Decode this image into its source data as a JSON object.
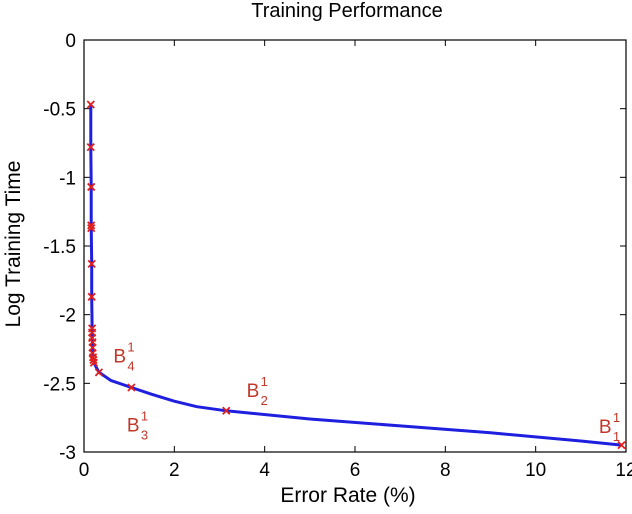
{
  "chart_data": {
    "type": "line",
    "title": "Training Performance",
    "xlabel": "Error Rate (%)",
    "ylabel": "Log Training Time",
    "xlim": [
      0,
      12
    ],
    "ylim": [
      -3,
      0
    ],
    "xticks": [
      0,
      2,
      4,
      6,
      8,
      10,
      12
    ],
    "yticks": [
      0,
      -0.5,
      -1,
      -1.5,
      -2,
      -2.5,
      -3
    ],
    "x_tick_labels": [
      "0",
      "2",
      "4",
      "6",
      "8",
      "10",
      "12"
    ],
    "y_tick_labels": [
      "0",
      "-0.5",
      "-1",
      "-1.5",
      "-2",
      "-2.5",
      "-3"
    ],
    "grid": false,
    "line_color": "#1f1fe0",
    "marker_color": "#e01f1f",
    "annotation_color": "#c0392b",
    "series": [
      {
        "curve": [
          [
            0.15,
            -0.47
          ],
          [
            0.15,
            -0.78
          ],
          [
            0.16,
            -1.07
          ],
          [
            0.16,
            -1.35
          ],
          [
            0.17,
            -1.63
          ],
          [
            0.17,
            -1.87
          ],
          [
            0.18,
            -2.1
          ],
          [
            0.18,
            -2.17
          ],
          [
            0.19,
            -2.22
          ],
          [
            0.19,
            -2.28
          ],
          [
            0.2,
            -2.32
          ],
          [
            0.22,
            -2.35
          ],
          [
            0.33,
            -2.42
          ],
          [
            0.6,
            -2.48
          ],
          [
            1.05,
            -2.53
          ],
          [
            1.5,
            -2.58
          ],
          [
            2.0,
            -2.63
          ],
          [
            2.5,
            -2.67
          ],
          [
            3.15,
            -2.7
          ],
          [
            5.0,
            -2.76
          ],
          [
            7.0,
            -2.81
          ],
          [
            9.0,
            -2.86
          ],
          [
            11.0,
            -2.92
          ],
          [
            11.9,
            -2.95
          ]
        ],
        "markers": [
          [
            0.15,
            -0.47
          ],
          [
            0.15,
            -0.78
          ],
          [
            0.16,
            -1.07
          ],
          [
            0.16,
            -1.35
          ],
          [
            0.16,
            -1.37
          ],
          [
            0.17,
            -1.63
          ],
          [
            0.17,
            -1.87
          ],
          [
            0.18,
            -2.1
          ],
          [
            0.18,
            -2.13
          ],
          [
            0.18,
            -2.17
          ],
          [
            0.19,
            -2.2
          ],
          [
            0.19,
            -2.24
          ],
          [
            0.19,
            -2.28
          ],
          [
            0.2,
            -2.31
          ],
          [
            0.21,
            -2.33
          ],
          [
            0.22,
            -2.35
          ],
          [
            0.33,
            -2.42
          ],
          [
            1.05,
            -2.53
          ],
          [
            3.15,
            -2.7
          ],
          [
            11.9,
            -2.95
          ]
        ]
      }
    ],
    "annotations": [
      {
        "text": "B",
        "sub": "4",
        "sup": "1",
        "x": 0.65,
        "y": -2.35
      },
      {
        "text": "B",
        "sub": "2",
        "sup": "1",
        "x": 3.6,
        "y": -2.6
      },
      {
        "text": "B",
        "sub": "3",
        "sup": "1",
        "x": 0.95,
        "y": -2.85
      },
      {
        "text": "B",
        "sub": "1",
        "sup": "1",
        "x": 11.4,
        "y": -2.86
      }
    ]
  }
}
